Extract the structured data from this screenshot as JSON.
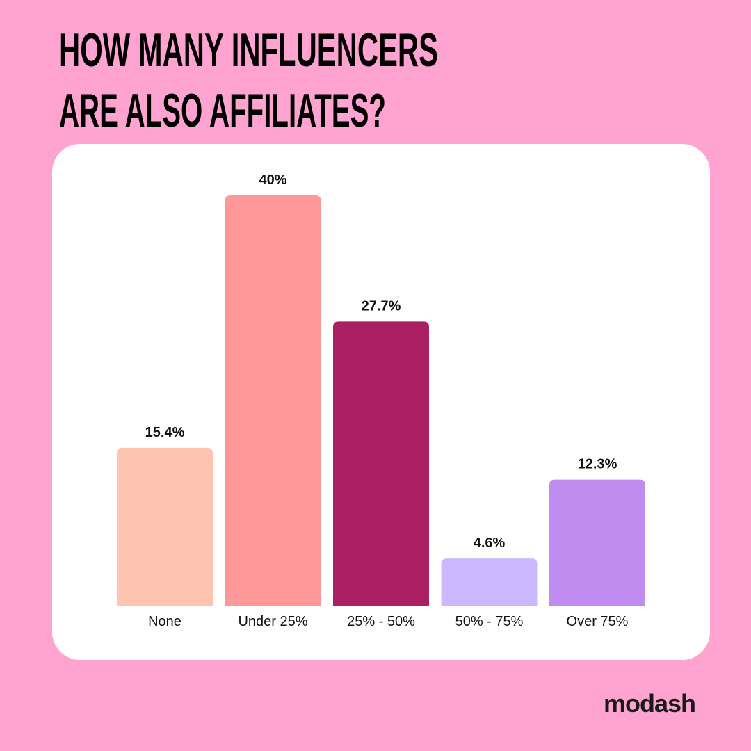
{
  "chart_data": {
    "type": "bar",
    "title": [
      "HOW MANY INFLUENCERS",
      "ARE ALSO AFFILIATES?"
    ],
    "categories": [
      "None",
      "Under 25%",
      "25% - 50%",
      "50% - 75%",
      "Over 75%"
    ],
    "values": [
      15.4,
      40,
      27.7,
      4.6,
      12.3
    ],
    "value_labels": [
      "15.4%",
      "40%",
      "27.7%",
      "4.6%",
      "12.3%"
    ],
    "colors": [
      "#ffc4b0",
      "#ff9898",
      "#ab1f63",
      "#cbb8ff",
      "#c08cf0"
    ]
  },
  "footer": {
    "brand": "modash"
  }
}
